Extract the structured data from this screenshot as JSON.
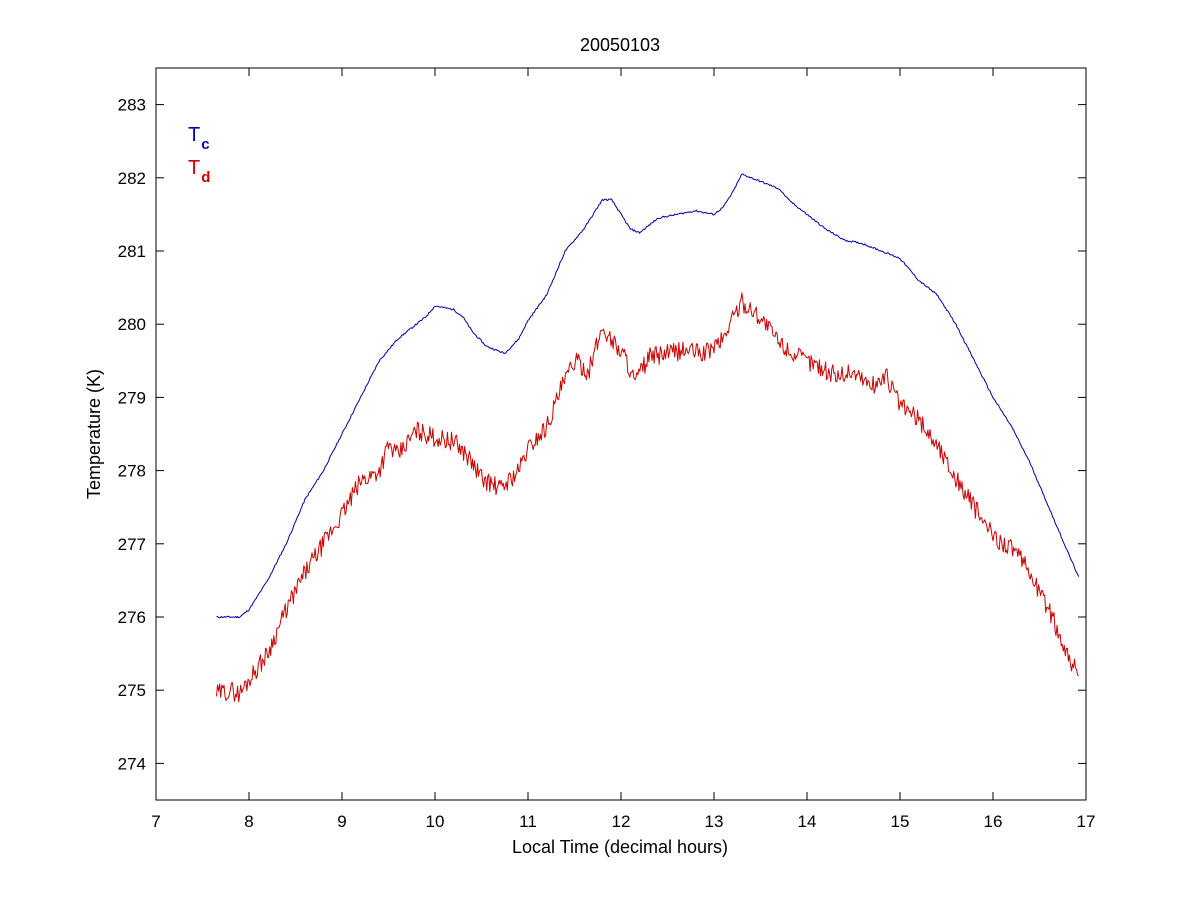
{
  "chart_data": {
    "type": "line",
    "title": "20050103",
    "xlabel": "Local Time (decimal hours)",
    "ylabel": "Temperature (K)",
    "xlim": [
      7,
      17
    ],
    "ylim": [
      273.5,
      283.5
    ],
    "xticks": [
      7,
      8,
      9,
      10,
      11,
      12,
      13,
      14,
      15,
      16,
      17
    ],
    "yticks": [
      274,
      275,
      276,
      277,
      278,
      279,
      280,
      281,
      282,
      283
    ],
    "grid": false,
    "legend_position": "top-left",
    "series": [
      {
        "name": "T",
        "subscript": "c",
        "color": "#0000aa",
        "x": [
          7.65,
          7.9,
          8.0,
          8.2,
          8.4,
          8.6,
          8.8,
          9.0,
          9.2,
          9.4,
          9.6,
          9.8,
          9.9,
          10.0,
          10.2,
          10.3,
          10.4,
          10.55,
          10.75,
          10.9,
          11.0,
          11.2,
          11.4,
          11.6,
          11.8,
          11.9,
          12.0,
          12.1,
          12.2,
          12.4,
          12.6,
          12.8,
          13.0,
          13.1,
          13.2,
          13.3,
          13.5,
          13.7,
          13.8,
          14.0,
          14.2,
          14.4,
          14.6,
          14.8,
          15.0,
          15.2,
          15.4,
          15.6,
          15.8,
          16.0,
          16.2,
          16.4,
          16.6,
          16.8,
          16.92
        ],
        "y": [
          276.0,
          276.0,
          276.1,
          276.5,
          277.0,
          277.6,
          278.0,
          278.5,
          279.0,
          279.5,
          279.8,
          280.0,
          280.1,
          280.25,
          280.2,
          280.1,
          279.9,
          279.7,
          279.6,
          279.8,
          280.05,
          280.4,
          281.0,
          281.3,
          281.7,
          281.7,
          281.5,
          281.3,
          281.25,
          281.45,
          281.5,
          281.55,
          281.5,
          281.6,
          281.8,
          282.05,
          281.95,
          281.85,
          281.7,
          281.5,
          281.3,
          281.15,
          281.1,
          281.0,
          280.9,
          280.6,
          280.4,
          280.0,
          279.5,
          279.0,
          278.6,
          278.1,
          277.5,
          276.9,
          276.55
        ]
      },
      {
        "name": "T",
        "subscript": "d",
        "color": "#cc0000",
        "x": [
          7.65,
          7.8,
          7.9,
          8.0,
          8.2,
          8.4,
          8.6,
          8.8,
          9.0,
          9.2,
          9.4,
          9.5,
          9.6,
          9.8,
          10.0,
          10.2,
          10.35,
          10.5,
          10.7,
          10.9,
          11.0,
          11.2,
          11.35,
          11.5,
          11.65,
          11.8,
          11.95,
          12.05,
          12.15,
          12.3,
          12.5,
          12.7,
          12.9,
          13.1,
          13.2,
          13.3,
          13.5,
          13.7,
          13.9,
          14.1,
          14.3,
          14.5,
          14.7,
          14.85,
          15.0,
          15.2,
          15.4,
          15.6,
          15.8,
          16.0,
          16.2,
          16.4,
          16.6,
          16.8,
          16.92
        ],
        "y": [
          274.95,
          275.0,
          274.95,
          275.15,
          275.5,
          276.1,
          276.6,
          277.0,
          277.4,
          277.85,
          278.0,
          278.35,
          278.2,
          278.55,
          278.45,
          278.4,
          278.2,
          277.9,
          277.75,
          278.0,
          278.3,
          278.6,
          279.1,
          279.5,
          279.35,
          279.95,
          279.7,
          279.55,
          279.2,
          279.55,
          279.6,
          279.65,
          279.6,
          279.8,
          280.1,
          280.3,
          280.1,
          279.75,
          279.55,
          279.45,
          279.3,
          279.35,
          279.15,
          279.3,
          278.9,
          278.7,
          278.35,
          277.9,
          277.5,
          277.1,
          276.95,
          276.6,
          276.1,
          275.5,
          275.2
        ]
      }
    ]
  }
}
